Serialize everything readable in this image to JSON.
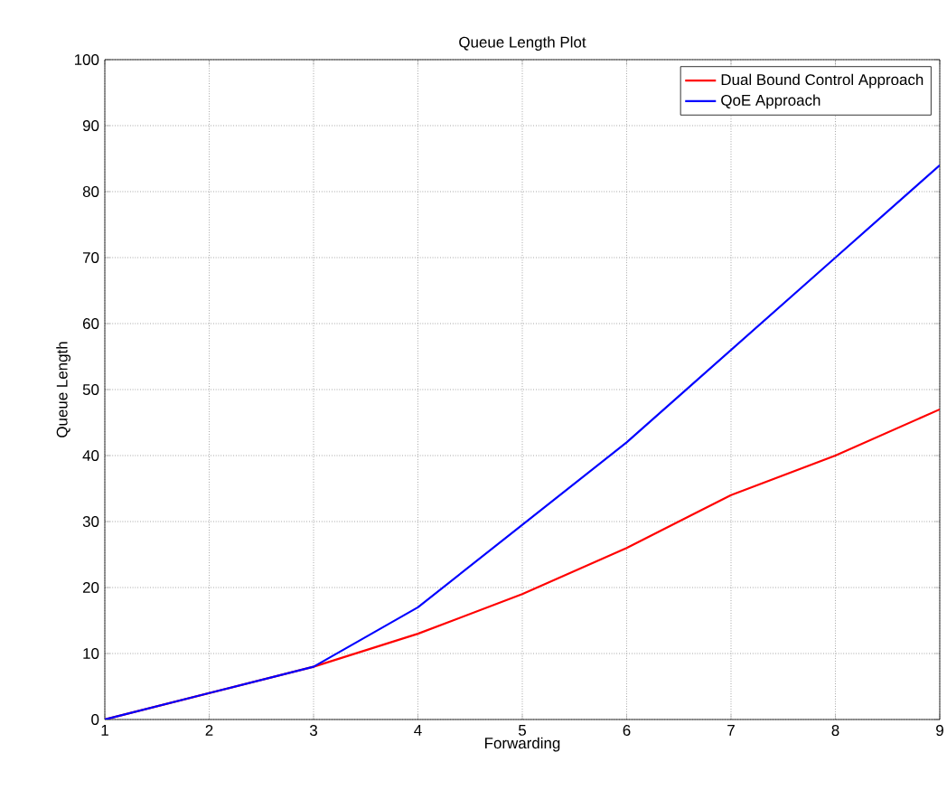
{
  "chart_data": {
    "type": "line",
    "title": "Queue Length Plot",
    "xlabel": "Forwarding",
    "ylabel": "Queue Length",
    "x": [
      1,
      2,
      3,
      4,
      5,
      6,
      7,
      8,
      9
    ],
    "series": [
      {
        "name": "Dual Bound Control Approach",
        "color": "#ff0000",
        "values": [
          0,
          null,
          8,
          13,
          19,
          26,
          34,
          40,
          47
        ]
      },
      {
        "name": "QoE Approach",
        "color": "#0000ff",
        "values": [
          0,
          4,
          8,
          17,
          29.5,
          42,
          56,
          70,
          84
        ]
      }
    ],
    "xlim": [
      1,
      9
    ],
    "ylim": [
      0,
      100
    ],
    "xticks": [
      1,
      2,
      3,
      4,
      5,
      6,
      7,
      8,
      9
    ],
    "yticks": [
      0,
      10,
      20,
      30,
      40,
      50,
      60,
      70,
      80,
      90,
      100
    ],
    "grid": true,
    "legend": "top right",
    "marker": "none",
    "line_style": "solid"
  }
}
